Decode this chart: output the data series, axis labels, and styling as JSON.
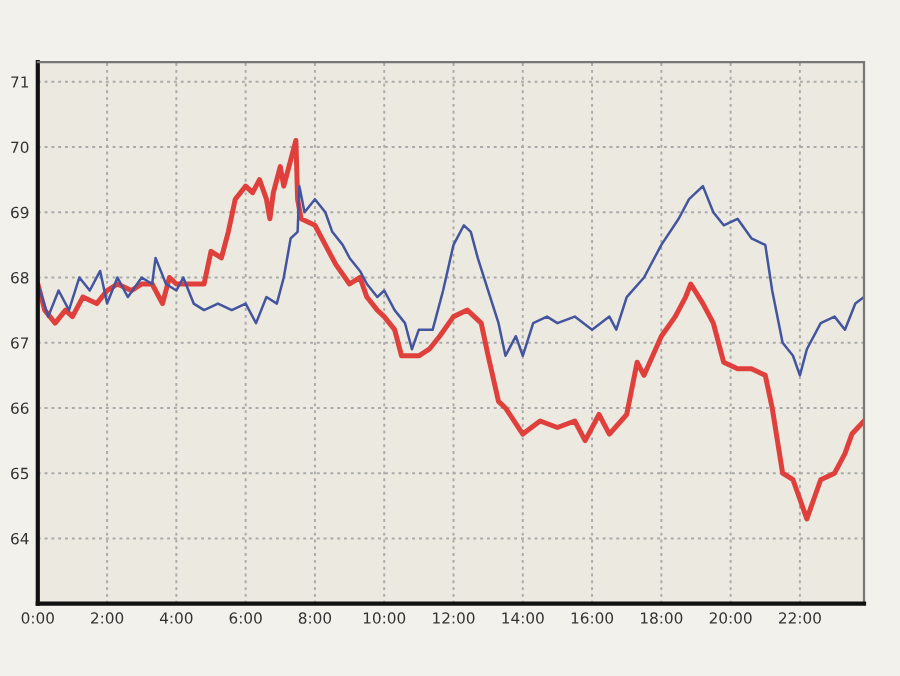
{
  "chart_data": {
    "type": "line",
    "xlim": [
      0,
      23.85
    ],
    "ylim": [
      63,
      71.3
    ],
    "xticks": [
      {
        "value": 0,
        "label": "0:00"
      },
      {
        "value": 2,
        "label": "2:00"
      },
      {
        "value": 4,
        "label": "4:00"
      },
      {
        "value": 6,
        "label": "6:00"
      },
      {
        "value": 8,
        "label": "8:00"
      },
      {
        "value": 10,
        "label": "10:00"
      },
      {
        "value": 12,
        "label": "12:00"
      },
      {
        "value": 14,
        "label": "14:00"
      },
      {
        "value": 16,
        "label": "16:00"
      },
      {
        "value": 18,
        "label": "18:00"
      },
      {
        "value": 20,
        "label": "20:00"
      },
      {
        "value": 22,
        "label": "22:00"
      }
    ],
    "yticks": [
      64,
      65,
      66,
      67,
      68,
      69,
      70,
      71
    ],
    "grid": true,
    "marker": "none",
    "line_style": "solid",
    "series": [
      {
        "color": "#e0403c",
        "x": [
          0,
          0.2,
          0.5,
          0.8,
          1.0,
          1.3,
          1.7,
          2.0,
          2.3,
          2.7,
          3.0,
          3.3,
          3.6,
          3.8,
          4.0,
          4.5,
          4.8,
          5.0,
          5.3,
          5.5,
          5.7,
          6.0,
          6.2,
          6.4,
          6.6,
          6.7,
          6.8,
          7.0,
          7.1,
          7.3,
          7.45,
          7.5,
          7.6,
          8.0,
          8.3,
          8.6,
          9.0,
          9.3,
          9.5,
          9.8,
          10.0,
          10.3,
          10.5,
          11.0,
          11.3,
          11.6,
          12.0,
          12.4,
          12.8,
          13.0,
          13.3,
          13.5,
          14.0,
          14.5,
          15.0,
          15.5,
          15.8,
          16.2,
          16.5,
          17.0,
          17.3,
          17.5,
          18.0,
          18.4,
          18.7,
          18.85,
          19.2,
          19.5,
          19.8,
          20.2,
          20.6,
          21.0,
          21.2,
          21.5,
          21.8,
          22.0,
          22.2,
          22.4,
          22.6,
          23.0,
          23.3,
          23.5,
          23.85
        ],
        "values": [
          67.9,
          67.5,
          67.3,
          67.5,
          67.4,
          67.7,
          67.6,
          67.8,
          67.9,
          67.8,
          67.9,
          67.9,
          67.6,
          68.0,
          67.9,
          67.9,
          67.9,
          68.4,
          68.3,
          68.7,
          69.2,
          69.4,
          69.3,
          69.5,
          69.2,
          68.9,
          69.3,
          69.7,
          69.4,
          69.8,
          70.1,
          69.2,
          68.9,
          68.8,
          68.5,
          68.2,
          67.9,
          68.0,
          67.7,
          67.5,
          67.4,
          67.2,
          66.8,
          66.8,
          66.9,
          67.1,
          67.4,
          67.5,
          67.3,
          66.8,
          66.1,
          66.0,
          65.6,
          65.8,
          65.7,
          65.8,
          65.5,
          65.9,
          65.6,
          65.9,
          66.7,
          66.5,
          67.1,
          67.4,
          67.7,
          67.9,
          67.6,
          67.3,
          66.7,
          66.6,
          66.6,
          66.5,
          66.0,
          65.0,
          64.9,
          64.6,
          64.3,
          64.6,
          64.9,
          65.0,
          65.3,
          65.6,
          65.8
        ]
      },
      {
        "color": "#4455a0",
        "x": [
          0,
          0.3,
          0.6,
          0.9,
          1.2,
          1.5,
          1.8,
          2.0,
          2.3,
          2.6,
          3.0,
          3.3,
          3.4,
          3.7,
          4.0,
          4.2,
          4.5,
          4.8,
          5.2,
          5.6,
          6.0,
          6.3,
          6.6,
          6.9,
          7.1,
          7.3,
          7.5,
          7.55,
          7.7,
          8.0,
          8.3,
          8.5,
          8.8,
          9.0,
          9.3,
          9.5,
          9.8,
          10.0,
          10.3,
          10.6,
          10.8,
          11.0,
          11.4,
          11.7,
          12.0,
          12.3,
          12.5,
          12.7,
          13.0,
          13.3,
          13.5,
          13.8,
          14.0,
          14.3,
          14.7,
          15.0,
          15.5,
          16.0,
          16.5,
          16.7,
          17.0,
          17.5,
          18.0,
          18.5,
          18.8,
          19.2,
          19.5,
          19.8,
          20.2,
          20.6,
          21.0,
          21.2,
          21.5,
          21.8,
          22.0,
          22.2,
          22.6,
          23.0,
          23.3,
          23.6,
          23.85
        ],
        "values": [
          67.9,
          67.4,
          67.8,
          67.5,
          68.0,
          67.8,
          68.1,
          67.6,
          68.0,
          67.7,
          68.0,
          67.9,
          68.3,
          67.9,
          67.8,
          68.0,
          67.6,
          67.5,
          67.6,
          67.5,
          67.6,
          67.3,
          67.7,
          67.6,
          68.0,
          68.6,
          68.7,
          69.4,
          69.0,
          69.2,
          69.0,
          68.7,
          68.5,
          68.3,
          68.1,
          67.9,
          67.7,
          67.8,
          67.5,
          67.3,
          66.9,
          67.2,
          67.2,
          67.8,
          68.5,
          68.8,
          68.7,
          68.3,
          67.8,
          67.3,
          66.8,
          67.1,
          66.8,
          67.3,
          67.4,
          67.3,
          67.4,
          67.2,
          67.4,
          67.2,
          67.7,
          68.0,
          68.5,
          68.9,
          69.2,
          69.4,
          69.0,
          68.8,
          68.9,
          68.6,
          68.5,
          67.8,
          67.0,
          66.8,
          66.5,
          66.9,
          67.3,
          67.4,
          67.2,
          67.6,
          67.7
        ]
      }
    ]
  }
}
